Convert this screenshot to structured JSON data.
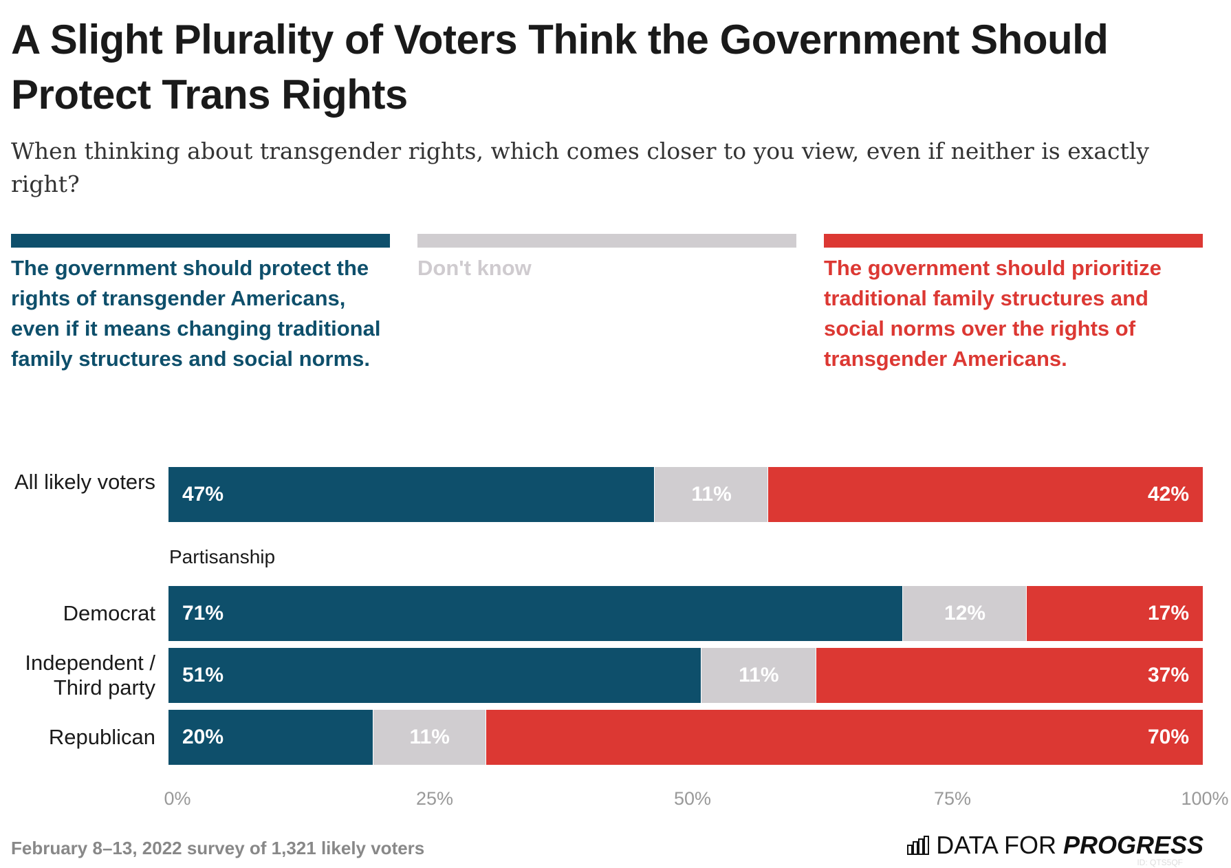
{
  "title": "A Slight Plurality of Voters Think the Government Should Protect Trans Rights",
  "subtitle": "When thinking about transgender rights, which comes closer to you view, even if neither is exactly right?",
  "colors": {
    "protect": "#0e4f6b",
    "dont_know": "#d0cdd0",
    "prioritize": "#dc3833"
  },
  "legend": [
    {
      "label": "The government should protect the rights of transgender Americans, even if it means changing traditional family structures and social norms.",
      "color": "#0e4f6b"
    },
    {
      "label": "Don't know",
      "color": "#d0cdd0"
    },
    {
      "label": "The government should prioritize traditional family structures and social norms over the rights of transgender Americans.",
      "color": "#dc3833"
    }
  ],
  "chart_data": {
    "type": "bar",
    "orientation": "horizontal",
    "stacked": true,
    "group_label": "Partisanship",
    "categories": [
      "All likely voters",
      "Democrat",
      "Independent / Third party",
      "Republican"
    ],
    "series": [
      {
        "name": "The government should protect the rights of transgender Americans, even if it means changing traditional family structures and social norms.",
        "values": [
          47,
          71,
          51,
          20
        ],
        "labels": [
          "47%",
          "71%",
          "51%",
          "20%"
        ]
      },
      {
        "name": "Don't know",
        "values": [
          11,
          12,
          11,
          11
        ],
        "labels": [
          "11%",
          "12%",
          "11%",
          "11%"
        ]
      },
      {
        "name": "The government should prioritize traditional family structures and social norms over the rights of transgender Americans.",
        "values": [
          42,
          17,
          37,
          70
        ],
        "labels": [
          "42%",
          "17%",
          "37%",
          "70%"
        ]
      }
    ],
    "xlim": [
      0,
      100
    ],
    "x_ticks": [
      "0%",
      "25%",
      "50%",
      "75%",
      "100%"
    ],
    "grid": false,
    "legend_placement": "top"
  },
  "footer": "February 8–13, 2022 survey of 1,321 likely voters",
  "logo": {
    "light": "DATA FOR",
    "bold": "PROGRESS",
    "id": "ID: QTS5QF"
  }
}
